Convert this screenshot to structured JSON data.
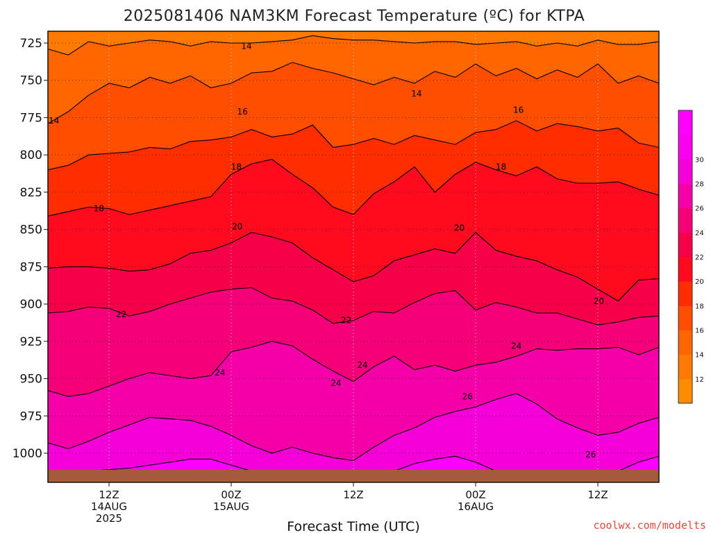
{
  "chart_data": {
    "type": "heatmap",
    "title": "2025081406 NAM3KM Forecast Temperature (ºC) for KTPA",
    "xlabel": "Forecast Time (UTC)",
    "credit": "coolwx.com/modelts",
    "x_ticks": [
      {
        "hour": 6,
        "lines": [
          "12Z",
          "14AUG",
          "2025"
        ]
      },
      {
        "hour": 18,
        "lines": [
          "00Z",
          "15AUG"
        ]
      },
      {
        "hour": 30,
        "lines": [
          "12Z"
        ]
      },
      {
        "hour": 42,
        "lines": [
          "00Z",
          "16AUG"
        ]
      },
      {
        "hour": 54,
        "lines": [
          "12Z"
        ]
      }
    ],
    "xlim": [
      0,
      60
    ],
    "y_axis": "pressure (hPa)",
    "y_ticks": [
      725,
      750,
      775,
      800,
      825,
      850,
      875,
      900,
      925,
      950,
      975,
      1000
    ],
    "ylim": [
      1012,
      718
    ],
    "grid": true,
    "colorbar": {
      "ticks": [
        12,
        14,
        16,
        18,
        20,
        22,
        24,
        26,
        28,
        30
      ],
      "colors": [
        "#ff8c00",
        "#ff7a00",
        "#ff6600",
        "#ff4e00",
        "#ff2d00",
        "#ff0a1e",
        "#f7004a",
        "#f50078",
        "#f500a8",
        "#f500d8",
        "#fa00f0",
        "#ff00ff"
      ]
    },
    "contour_levels": [
      14,
      16,
      18,
      20,
      22,
      24,
      26
    ],
    "contours": [
      {
        "level": 14,
        "points": [
          [
            0,
            729
          ],
          [
            2,
            733
          ],
          [
            4,
            724
          ],
          [
            6,
            727
          ],
          [
            8,
            725
          ],
          [
            10,
            723
          ],
          [
            12,
            724
          ],
          [
            14,
            727
          ],
          [
            16,
            724
          ],
          [
            18,
            725
          ],
          [
            20,
            725
          ],
          [
            22,
            724
          ],
          [
            24,
            723
          ],
          [
            26,
            720
          ],
          [
            28,
            722
          ],
          [
            30,
            723
          ],
          [
            32,
            723
          ],
          [
            34,
            724
          ],
          [
            36,
            725
          ],
          [
            38,
            724
          ],
          [
            40,
            724
          ],
          [
            42,
            726
          ],
          [
            44,
            725
          ],
          [
            46,
            724
          ],
          [
            48,
            727
          ],
          [
            50,
            725
          ],
          [
            52,
            727
          ],
          [
            54,
            723
          ],
          [
            56,
            726
          ],
          [
            58,
            726
          ],
          [
            60,
            724
          ]
        ]
      },
      {
        "level": 16,
        "points": [
          [
            0,
            779
          ],
          [
            2,
            771
          ],
          [
            4,
            760
          ],
          [
            6,
            752
          ],
          [
            8,
            755
          ],
          [
            10,
            748
          ],
          [
            12,
            752
          ],
          [
            14,
            747
          ],
          [
            16,
            755
          ],
          [
            18,
            752
          ],
          [
            20,
            745
          ],
          [
            22,
            744
          ],
          [
            24,
            738
          ],
          [
            26,
            742
          ],
          [
            28,
            745
          ],
          [
            30,
            749
          ],
          [
            32,
            753
          ],
          [
            34,
            748
          ],
          [
            36,
            752
          ],
          [
            38,
            744
          ],
          [
            40,
            748
          ],
          [
            42,
            739
          ],
          [
            44,
            747
          ],
          [
            46,
            742
          ],
          [
            48,
            749
          ],
          [
            50,
            743
          ],
          [
            52,
            748
          ],
          [
            54,
            739
          ],
          [
            56,
            752
          ],
          [
            58,
            747
          ],
          [
            60,
            752
          ]
        ]
      },
      {
        "level": 18,
        "points": [
          [
            0,
            810
          ],
          [
            2,
            807
          ],
          [
            4,
            800
          ],
          [
            6,
            799
          ],
          [
            8,
            798
          ],
          [
            10,
            795
          ],
          [
            12,
            796
          ],
          [
            14,
            791
          ],
          [
            16,
            790
          ],
          [
            18,
            788
          ],
          [
            20,
            783
          ],
          [
            22,
            788
          ],
          [
            24,
            786
          ],
          [
            26,
            780
          ],
          [
            28,
            795
          ],
          [
            30,
            793
          ],
          [
            32,
            789
          ],
          [
            34,
            793
          ],
          [
            36,
            787
          ],
          [
            38,
            790
          ],
          [
            40,
            793
          ],
          [
            42,
            785
          ],
          [
            44,
            783
          ],
          [
            46,
            777
          ],
          [
            48,
            784
          ],
          [
            50,
            779
          ],
          [
            52,
            781
          ],
          [
            54,
            784
          ],
          [
            56,
            782
          ],
          [
            58,
            792
          ],
          [
            60,
            795
          ]
        ]
      },
      {
        "level": 20,
        "points": [
          [
            0,
            841
          ],
          [
            2,
            838
          ],
          [
            4,
            835
          ],
          [
            6,
            836
          ],
          [
            8,
            840
          ],
          [
            10,
            837
          ],
          [
            12,
            834
          ],
          [
            14,
            831
          ],
          [
            16,
            828
          ],
          [
            18,
            813
          ],
          [
            20,
            806
          ],
          [
            22,
            803
          ],
          [
            24,
            813
          ],
          [
            26,
            822
          ],
          [
            28,
            835
          ],
          [
            30,
            840
          ],
          [
            32,
            826
          ],
          [
            34,
            818
          ],
          [
            36,
            808
          ],
          [
            38,
            825
          ],
          [
            40,
            813
          ],
          [
            42,
            805
          ],
          [
            44,
            810
          ],
          [
            46,
            814
          ],
          [
            48,
            808
          ],
          [
            50,
            816
          ],
          [
            52,
            819
          ],
          [
            54,
            819
          ],
          [
            56,
            818
          ],
          [
            58,
            823
          ],
          [
            60,
            827
          ]
        ]
      },
      {
        "level": 22,
        "points": [
          [
            0,
            876
          ],
          [
            2,
            875
          ],
          [
            4,
            875
          ],
          [
            6,
            876
          ],
          [
            8,
            878
          ],
          [
            10,
            877
          ],
          [
            12,
            873
          ],
          [
            14,
            866
          ],
          [
            16,
            864
          ],
          [
            18,
            859
          ],
          [
            20,
            852
          ],
          [
            22,
            855
          ],
          [
            24,
            859
          ],
          [
            26,
            869
          ],
          [
            28,
            877
          ],
          [
            30,
            885
          ],
          [
            32,
            881
          ],
          [
            34,
            871
          ],
          [
            36,
            867
          ],
          [
            38,
            863
          ],
          [
            40,
            866
          ],
          [
            42,
            852
          ],
          [
            44,
            864
          ],
          [
            46,
            868
          ],
          [
            48,
            871
          ],
          [
            50,
            877
          ],
          [
            52,
            882
          ],
          [
            54,
            890
          ],
          [
            56,
            898
          ],
          [
            58,
            884
          ],
          [
            60,
            883
          ]
        ]
      },
      {
        "level": 24,
        "points": [
          [
            0,
            906
          ],
          [
            2,
            905
          ],
          [
            4,
            902
          ],
          [
            6,
            903
          ],
          [
            8,
            908
          ],
          [
            10,
            905
          ],
          [
            12,
            900
          ],
          [
            14,
            896
          ],
          [
            16,
            892
          ],
          [
            18,
            890
          ],
          [
            20,
            889
          ],
          [
            22,
            896
          ],
          [
            24,
            898
          ],
          [
            26,
            904
          ],
          [
            28,
            913
          ],
          [
            30,
            911
          ],
          [
            32,
            905
          ],
          [
            34,
            906
          ],
          [
            36,
            899
          ],
          [
            38,
            893
          ],
          [
            40,
            891
          ],
          [
            42,
            904
          ],
          [
            44,
            899
          ],
          [
            46,
            902
          ],
          [
            48,
            906
          ],
          [
            50,
            906
          ],
          [
            52,
            910
          ],
          [
            54,
            914
          ],
          [
            56,
            912
          ],
          [
            58,
            909
          ],
          [
            60,
            908
          ]
        ]
      },
      {
        "level": 26,
        "points": [
          [
            0,
            958
          ],
          [
            2,
            962
          ],
          [
            4,
            960
          ],
          [
            6,
            955
          ],
          [
            8,
            950
          ],
          [
            10,
            946
          ],
          [
            12,
            948
          ],
          [
            14,
            950
          ],
          [
            16,
            948
          ],
          [
            18,
            932
          ],
          [
            20,
            929
          ],
          [
            22,
            925
          ],
          [
            24,
            928
          ],
          [
            26,
            937
          ],
          [
            28,
            945
          ],
          [
            30,
            952
          ],
          [
            32,
            942
          ],
          [
            34,
            935
          ],
          [
            36,
            944
          ],
          [
            38,
            941
          ],
          [
            40,
            945
          ],
          [
            42,
            941
          ],
          [
            44,
            939
          ],
          [
            46,
            935
          ],
          [
            48,
            930
          ],
          [
            50,
            931
          ],
          [
            52,
            930
          ],
          [
            54,
            930
          ],
          [
            56,
            929
          ],
          [
            58,
            934
          ],
          [
            60,
            929
          ]
        ]
      },
      {
        "level": 28,
        "points": [
          [
            0,
            993
          ],
          [
            2,
            997
          ],
          [
            4,
            992
          ],
          [
            6,
            986
          ],
          [
            8,
            981
          ],
          [
            10,
            976
          ],
          [
            12,
            977
          ],
          [
            14,
            978
          ],
          [
            16,
            982
          ],
          [
            18,
            988
          ],
          [
            20,
            995
          ],
          [
            22,
            1000
          ],
          [
            24,
            996
          ],
          [
            26,
            1000
          ],
          [
            28,
            1003
          ],
          [
            30,
            1005
          ],
          [
            32,
            996
          ],
          [
            34,
            988
          ],
          [
            36,
            983
          ],
          [
            38,
            976
          ],
          [
            40,
            972
          ],
          [
            42,
            969
          ],
          [
            44,
            964
          ],
          [
            46,
            960
          ],
          [
            48,
            967
          ],
          [
            50,
            977
          ],
          [
            52,
            983
          ],
          [
            54,
            988
          ],
          [
            56,
            986
          ],
          [
            58,
            980
          ],
          [
            60,
            976
          ]
        ]
      },
      {
        "level": 30,
        "points": [
          [
            0,
            1012
          ],
          [
            4,
            1012
          ],
          [
            8,
            1010
          ],
          [
            12,
            1006
          ],
          [
            14,
            1004
          ],
          [
            16,
            1004
          ],
          [
            18,
            1008
          ],
          [
            20,
            1012
          ],
          [
            34,
            1012
          ],
          [
            36,
            1007
          ],
          [
            38,
            1004
          ],
          [
            40,
            1002
          ],
          [
            42,
            1006
          ],
          [
            44,
            1012
          ],
          [
            56,
            1012
          ],
          [
            58,
            1006
          ],
          [
            60,
            1002
          ]
        ]
      }
    ],
    "labels": [
      {
        "text": "14",
        "x": 0.6,
        "y": 777
      },
      {
        "text": "14",
        "x": 19.5,
        "y": 727
      },
      {
        "text": "14",
        "x": 36.2,
        "y": 759
      },
      {
        "text": "16",
        "x": 19.1,
        "y": 771
      },
      {
        "text": "16",
        "x": 46.2,
        "y": 770
      },
      {
        "text": "18",
        "x": 5.0,
        "y": 836
      },
      {
        "text": "18",
        "x": 18.5,
        "y": 808
      },
      {
        "text": "18",
        "x": 44.5,
        "y": 808
      },
      {
        "text": "20",
        "x": 18.6,
        "y": 848
      },
      {
        "text": "20",
        "x": 40.4,
        "y": 849
      },
      {
        "text": "20",
        "x": 54.1,
        "y": 898
      },
      {
        "text": "22",
        "x": 7.2,
        "y": 907
      },
      {
        "text": "22",
        "x": 29.3,
        "y": 911
      },
      {
        "text": "24",
        "x": 16.9,
        "y": 946
      },
      {
        "text": "24",
        "x": 30.9,
        "y": 941
      },
      {
        "text": "24",
        "x": 28.3,
        "y": 953
      },
      {
        "text": "24",
        "x": 46.0,
        "y": 928
      },
      {
        "text": "26",
        "x": 41.2,
        "y": 962
      },
      {
        "text": "26",
        "x": 53.3,
        "y": 1001
      }
    ]
  }
}
